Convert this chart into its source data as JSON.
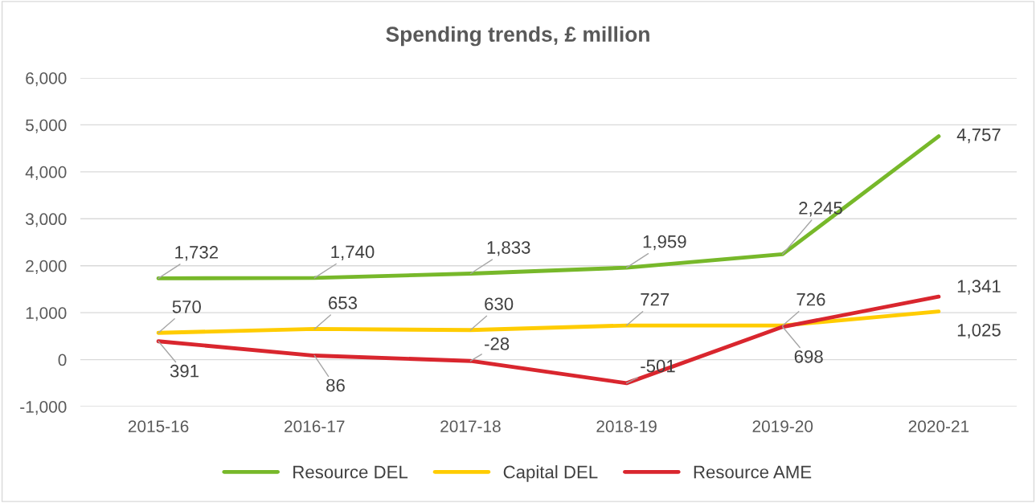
{
  "chart_data": {
    "type": "line",
    "title": "Spending trends, £ million",
    "categories": [
      "2015-16",
      "2016-17",
      "2017-18",
      "2018-19",
      "2019-20",
      "2020-21"
    ],
    "series": [
      {
        "name": "Resource DEL",
        "color": "#77b82a",
        "values": [
          1732,
          1740,
          1833,
          1959,
          2245,
          4757
        ],
        "value_labels": [
          "1,732",
          "1,740",
          "1,833",
          "1,959",
          "2,245",
          "4,757"
        ]
      },
      {
        "name": "Capital DEL",
        "color": "#ffcc00",
        "values": [
          570,
          653,
          630,
          727,
          726,
          1025
        ],
        "value_labels": [
          "570",
          "653",
          "630",
          "727",
          "726",
          "1,025"
        ]
      },
      {
        "name": "Resource AME",
        "color": "#d9262e",
        "values": [
          391,
          86,
          -28,
          -501,
          698,
          1341
        ],
        "value_labels": [
          "391",
          "86",
          "-28",
          "-501",
          "698",
          "1,341"
        ]
      }
    ],
    "ylim": [
      -1000,
      6000
    ],
    "yticks": [
      {
        "value": -1000,
        "label": "-1,000"
      },
      0,
      {
        "value": 1000,
        "label": "1,000"
      },
      {
        "value": 2000,
        "label": "2,000"
      },
      {
        "value": 3000,
        "label": "3,000"
      },
      {
        "value": 4000,
        "label": "4,000"
      },
      {
        "value": 5000,
        "label": "5,000"
      },
      {
        "value": 6000,
        "label": "6,000"
      }
    ],
    "grid": "y",
    "legend": "bottom",
    "marker": "none",
    "line_style": "solid"
  }
}
